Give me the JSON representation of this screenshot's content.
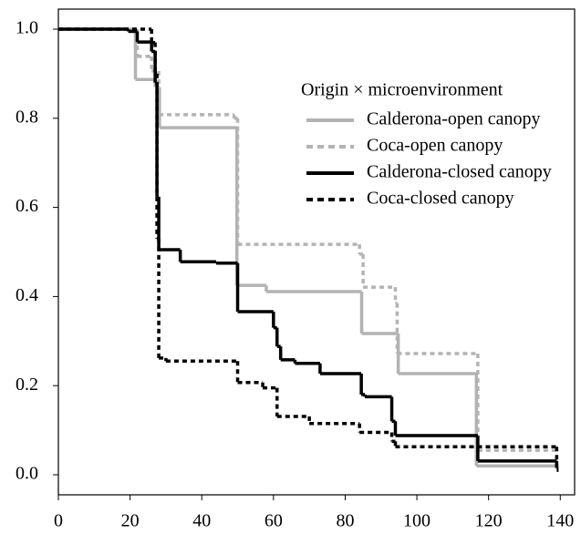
{
  "chart_data": {
    "type": "step",
    "xlim": [
      0,
      144
    ],
    "ylim": [
      -0.045,
      1.045
    ],
    "xticks": [
      0,
      20,
      40,
      60,
      80,
      100,
      120,
      140
    ],
    "yticks": [
      {
        "value": 0,
        "label": "0.0"
      },
      0.2,
      0.4,
      0.6,
      0.8,
      {
        "value": 1,
        "label": "1.0"
      }
    ],
    "legend_title": "Origin × microenvironment",
    "legend_position": "upper right",
    "series": [
      {
        "name": "Calderona-open canopy",
        "color": "#b3b3b3",
        "linestyle": "solid",
        "x": [
          0,
          21.5,
          27,
          28.2,
          49.8,
          58,
          84.6,
          94.8,
          116.6,
          139.5
        ],
        "values": [
          1.0,
          0.887,
          0.87,
          0.779,
          0.425,
          0.411,
          0.317,
          0.227,
          0.02,
          0.02
        ]
      },
      {
        "name": "Coca-open canopy",
        "color": "#b3b3b3",
        "linestyle": "dashed",
        "x": [
          0,
          22,
          26,
          28,
          49,
          50,
          84,
          85,
          94,
          94.5,
          117,
          139.5
        ],
        "values": [
          1.0,
          0.939,
          0.906,
          0.808,
          0.8,
          0.517,
          0.495,
          0.421,
          0.385,
          0.272,
          0.055,
          0.055
        ]
      },
      {
        "name": "Calderona-closed canopy",
        "color": "#000000",
        "linestyle": "solid",
        "x": [
          0,
          19.5,
          22,
          26,
          27,
          27.5,
          28,
          34,
          44,
          50,
          60,
          61,
          62,
          66,
          73,
          84.5,
          85.5,
          93,
          94,
          117,
          139,
          139.5
        ],
        "values": [
          1.0,
          0.995,
          0.971,
          0.95,
          0.88,
          0.624,
          0.505,
          0.478,
          0.475,
          0.366,
          0.33,
          0.288,
          0.258,
          0.25,
          0.227,
          0.18,
          0.175,
          0.12,
          0.088,
          0.031,
          0.015,
          0.015
        ]
      },
      {
        "name": "Coca-closed canopy",
        "color": "#000000",
        "linestyle": "dashed",
        "x": [
          0,
          26,
          27,
          27.5,
          28,
          30,
          50,
          57,
          61,
          70,
          84,
          93,
          94,
          139,
          139.5
        ],
        "values": [
          1.0,
          0.97,
          0.9,
          0.53,
          0.262,
          0.255,
          0.207,
          0.195,
          0.131,
          0.115,
          0.095,
          0.075,
          0.063,
          0.01,
          0.01
        ]
      }
    ]
  }
}
